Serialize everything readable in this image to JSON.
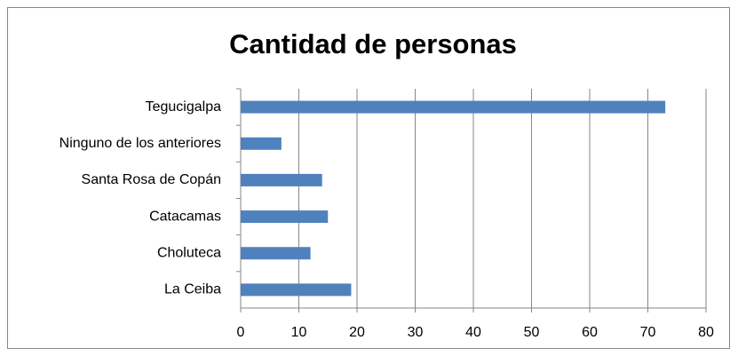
{
  "chart_data": {
    "type": "barh",
    "title": "Cantidad de personas",
    "categories": [
      "Tegucigalpa",
      "Ninguno de los anteriores",
      "Santa Rosa de Copán",
      "Catacamas",
      "Choluteca",
      "La Ceiba"
    ],
    "values": [
      73,
      7,
      14,
      15,
      12,
      19
    ],
    "color": "#4f81bd",
    "xlim": [
      0,
      80
    ],
    "xticks": [
      0,
      10,
      20,
      30,
      40,
      50,
      60,
      70,
      80
    ],
    "grid": true
  }
}
